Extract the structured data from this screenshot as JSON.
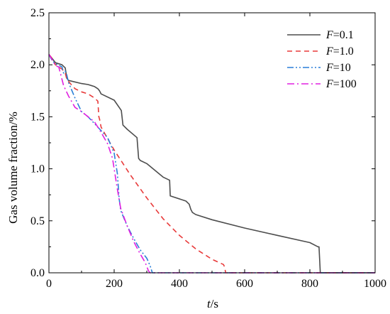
{
  "chart_data": {
    "type": "line",
    "xlabel": {
      "var": "t",
      "unit": "/s"
    },
    "ylabel": "Gas volume fraction/%",
    "xlim": [
      0,
      1000
    ],
    "ylim": [
      0,
      2.5
    ],
    "xticks": [
      0,
      200,
      400,
      600,
      800,
      1000
    ],
    "yticks": [
      0.0,
      0.5,
      1.0,
      1.5,
      2.0,
      2.5
    ],
    "xtick_labels": [
      "0",
      "200",
      "400",
      "600",
      "800",
      "1000"
    ],
    "ytick_labels": [
      "0.0",
      "0.5",
      "1.0",
      "1.5",
      "2.0",
      "2.5"
    ],
    "grid": false,
    "legend_position": "top-right",
    "series": [
      {
        "name": "F=0.1",
        "label_var": "F",
        "label_val": "=0.1",
        "color": "#4d4d4d",
        "dash": "solid",
        "x": [
          0,
          10,
          20,
          40,
          50,
          55,
          60,
          100,
          120,
          140,
          150,
          155,
          160,
          200,
          222,
          227,
          240,
          270,
          275,
          280,
          300,
          350,
          370,
          372,
          420,
          430,
          435,
          440,
          450,
          500,
          600,
          700,
          800,
          825,
          828,
          832,
          1000
        ],
        "y": [
          2.1,
          2.06,
          2.02,
          2.0,
          1.97,
          1.87,
          1.85,
          1.82,
          1.81,
          1.79,
          1.77,
          1.75,
          1.72,
          1.66,
          1.56,
          1.42,
          1.38,
          1.3,
          1.1,
          1.08,
          1.05,
          0.92,
          0.89,
          0.74,
          0.69,
          0.66,
          0.61,
          0.58,
          0.56,
          0.51,
          0.43,
          0.36,
          0.29,
          0.25,
          0.25,
          0.0,
          0.0
        ]
      },
      {
        "name": "F=1.0",
        "label_var": "F",
        "label_val": "=1.0",
        "color": "#e83a3a",
        "dash": "7,5",
        "x": [
          0,
          10,
          20,
          40,
          50,
          55,
          60,
          80,
          100,
          120,
          140,
          150,
          153,
          155,
          160,
          200,
          250,
          300,
          350,
          400,
          450,
          500,
          535,
          538,
          542,
          1000
        ],
        "y": [
          2.1,
          2.06,
          2.0,
          1.96,
          1.92,
          1.86,
          1.84,
          1.77,
          1.74,
          1.72,
          1.68,
          1.65,
          1.5,
          1.48,
          1.4,
          1.18,
          0.94,
          0.72,
          0.52,
          0.36,
          0.23,
          0.13,
          0.08,
          0.06,
          0.0,
          0.0
        ]
      },
      {
        "name": "F=10",
        "label_var": "F",
        "label_val": "=10",
        "color": "#2a7fd8",
        "dash": "9,3,2,3,2,3",
        "x": [
          0,
          10,
          20,
          40,
          45,
          50,
          55,
          60,
          80,
          100,
          120,
          150,
          180,
          200,
          210,
          215,
          220,
          240,
          260,
          280,
          300,
          310,
          313,
          317,
          1000
        ],
        "y": [
          2.1,
          2.04,
          2.01,
          1.98,
          1.92,
          1.94,
          1.9,
          1.83,
          1.68,
          1.55,
          1.5,
          1.4,
          1.3,
          1.15,
          0.95,
          0.72,
          0.6,
          0.45,
          0.33,
          0.22,
          0.14,
          0.07,
          0.04,
          0.0,
          0.0
        ]
      },
      {
        "name": "F=100",
        "label_var": "F",
        "label_val": "=100",
        "color": "#e020e0",
        "dash": "10,4,2,4",
        "x": [
          0,
          10,
          20,
          30,
          45,
          60,
          80,
          100,
          120,
          140,
          160,
          180,
          195,
          200,
          210,
          220,
          240,
          260,
          280,
          295,
          300,
          305,
          310,
          1000
        ],
        "y": [
          2.1,
          2.05,
          1.99,
          1.98,
          1.8,
          1.7,
          1.59,
          1.55,
          1.5,
          1.45,
          1.35,
          1.24,
          1.1,
          1.0,
          0.8,
          0.62,
          0.45,
          0.3,
          0.18,
          0.1,
          0.06,
          0.02,
          0.0,
          0.0
        ]
      }
    ]
  }
}
